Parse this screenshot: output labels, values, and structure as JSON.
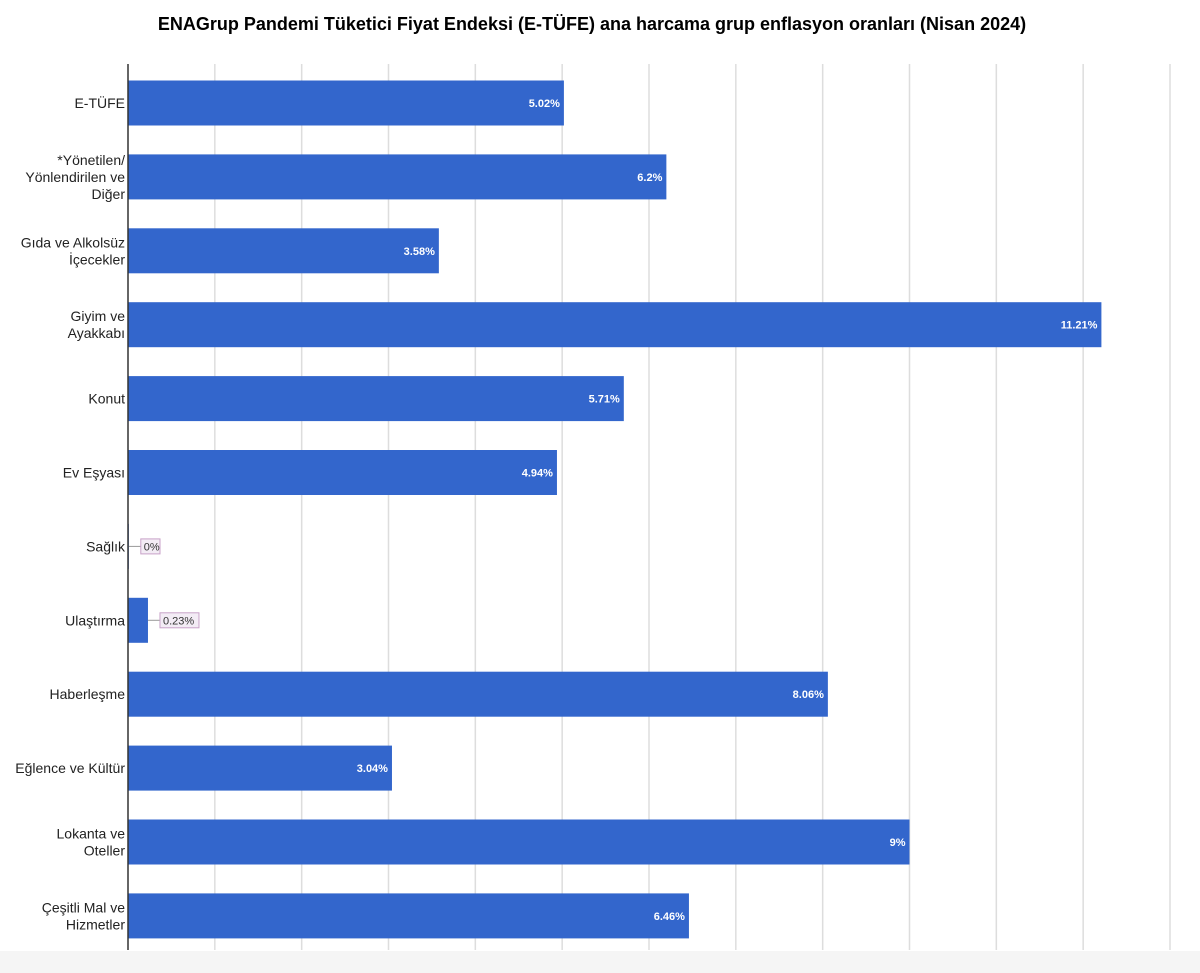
{
  "chart_data": {
    "type": "bar",
    "orientation": "horizontal",
    "title": "ENAGrup Pandemi Tüketici Fiyat Endeksi (E-TÜFE) ana harcama grup enflasyon oranları (Nisan 2024)",
    "categories": [
      [
        "E-TÜFE"
      ],
      [
        "*Yönetilen/",
        "Yönlendirilen ve",
        "Diğer"
      ],
      [
        "Gıda ve Alkolsüz",
        "İçecekler"
      ],
      [
        "Giyim ve",
        "Ayakkabı"
      ],
      [
        "Konut"
      ],
      [
        "Ev Eşyası"
      ],
      [
        "Sağlık"
      ],
      [
        "Ulaştırma"
      ],
      [
        "Haberleşme"
      ],
      [
        "Eğlence ve Kültür"
      ],
      [
        "Lokanta ve",
        "Oteller"
      ],
      [
        "Çeşitli Mal ve",
        "Hizmetler"
      ]
    ],
    "values": [
      5.02,
      6.2,
      3.58,
      11.21,
      5.71,
      4.94,
      0,
      0.23,
      8.06,
      3.04,
      9,
      6.46
    ],
    "value_labels": [
      "5.02%",
      "6.2%",
      "3.58%",
      "11.21%",
      "5.71%",
      "4.94%",
      "0%",
      "0.23%",
      "8.06%",
      "3.04%",
      "9%",
      "6.46%"
    ],
    "xlim": [
      0,
      12
    ],
    "grid": true,
    "x_tick_labels_shown": false,
    "bar_color": "#3366cc",
    "gridline_color": "#dddddd",
    "callout_bg": "#f3ecf5",
    "callout_border": "#c8a2c8"
  }
}
